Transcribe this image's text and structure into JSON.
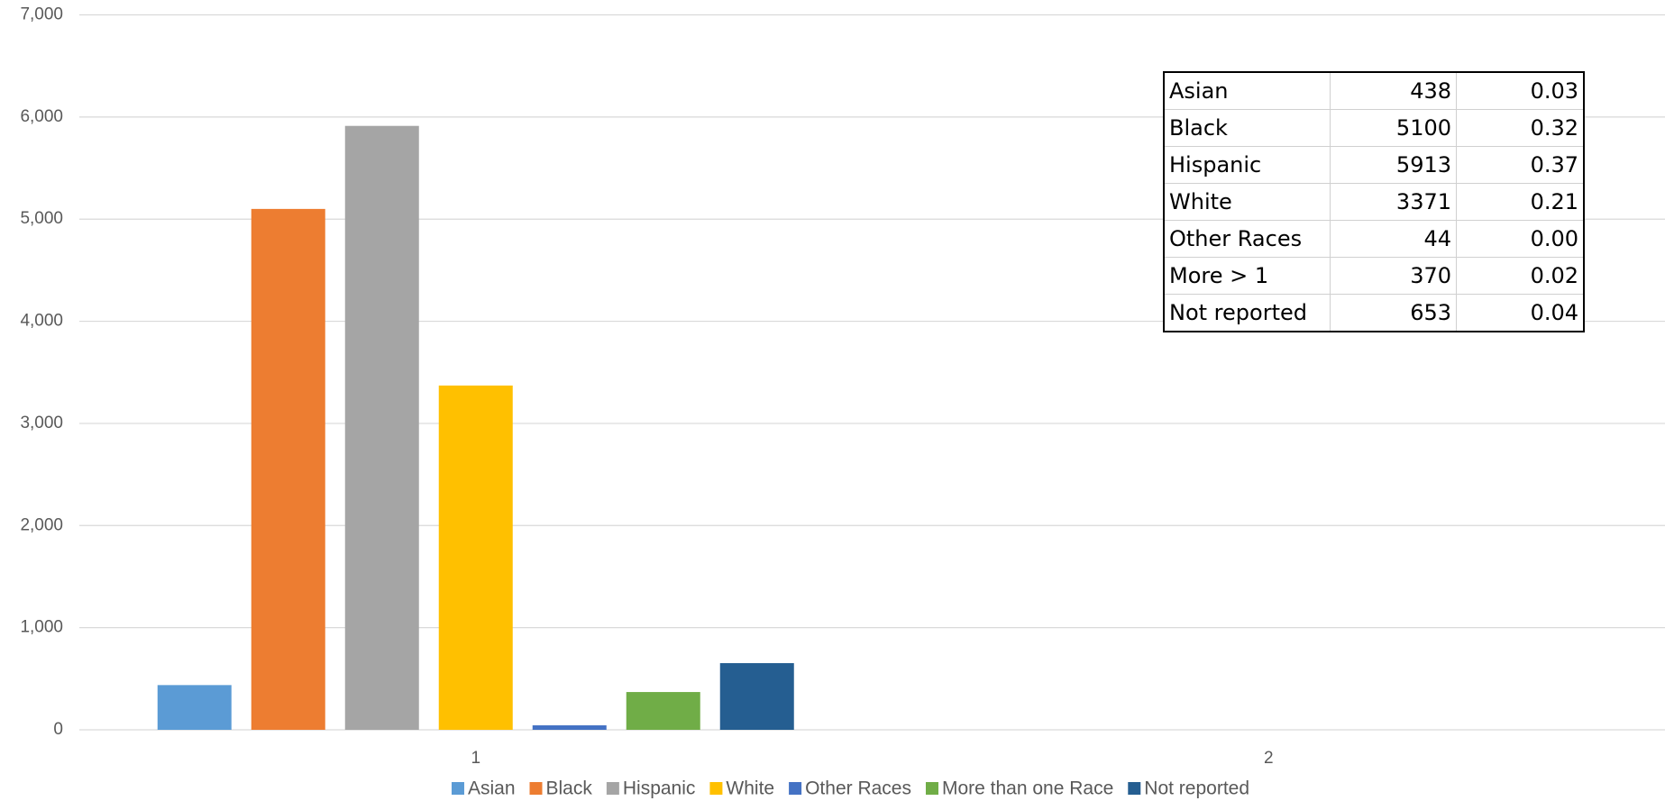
{
  "chart_data": {
    "type": "bar",
    "categories": [
      "1",
      "2"
    ],
    "series": [
      {
        "name": "Asian",
        "color": "#5b9bd5",
        "values": [
          438,
          null
        ]
      },
      {
        "name": "Black",
        "color": "#ed7d31",
        "values": [
          5100,
          null
        ]
      },
      {
        "name": "Hispanic",
        "color": "#a5a5a5",
        "values": [
          5913,
          null
        ]
      },
      {
        "name": "White",
        "color": "#ffc000",
        "values": [
          3371,
          null
        ]
      },
      {
        "name": "Other Races",
        "color": "#4472c4",
        "values": [
          44,
          null
        ]
      },
      {
        "name": "More than one Race",
        "color": "#70ad47",
        "values": [
          370,
          null
        ]
      },
      {
        "name": "Not reported",
        "color": "#255e91",
        "values": [
          653,
          null
        ]
      }
    ],
    "ylim": [
      0,
      7000
    ],
    "yticks": [
      0,
      {
        "value": 1000,
        "label": "1,000"
      },
      {
        "value": 2000,
        "label": "2,000"
      },
      {
        "value": 3000,
        "label": "3,000"
      },
      {
        "value": 4000,
        "label": "4,000"
      },
      {
        "value": 5000,
        "label": "5,000"
      },
      {
        "value": 6000,
        "label": "6,000"
      },
      {
        "value": 7000,
        "label": "7,000"
      }
    ],
    "grid": true,
    "legend": "bottom"
  },
  "table": {
    "rows": [
      [
        "Asian",
        "438",
        "0.03"
      ],
      [
        "Black",
        "5100",
        "0.32"
      ],
      [
        "Hispanic",
        "5913",
        "0.37"
      ],
      [
        "White",
        "3371",
        "0.21"
      ],
      [
        "Other Races",
        "44",
        "0.00"
      ],
      [
        "More > 1",
        "370",
        "0.02"
      ],
      [
        "Not reported",
        "653",
        "0.04"
      ]
    ]
  }
}
